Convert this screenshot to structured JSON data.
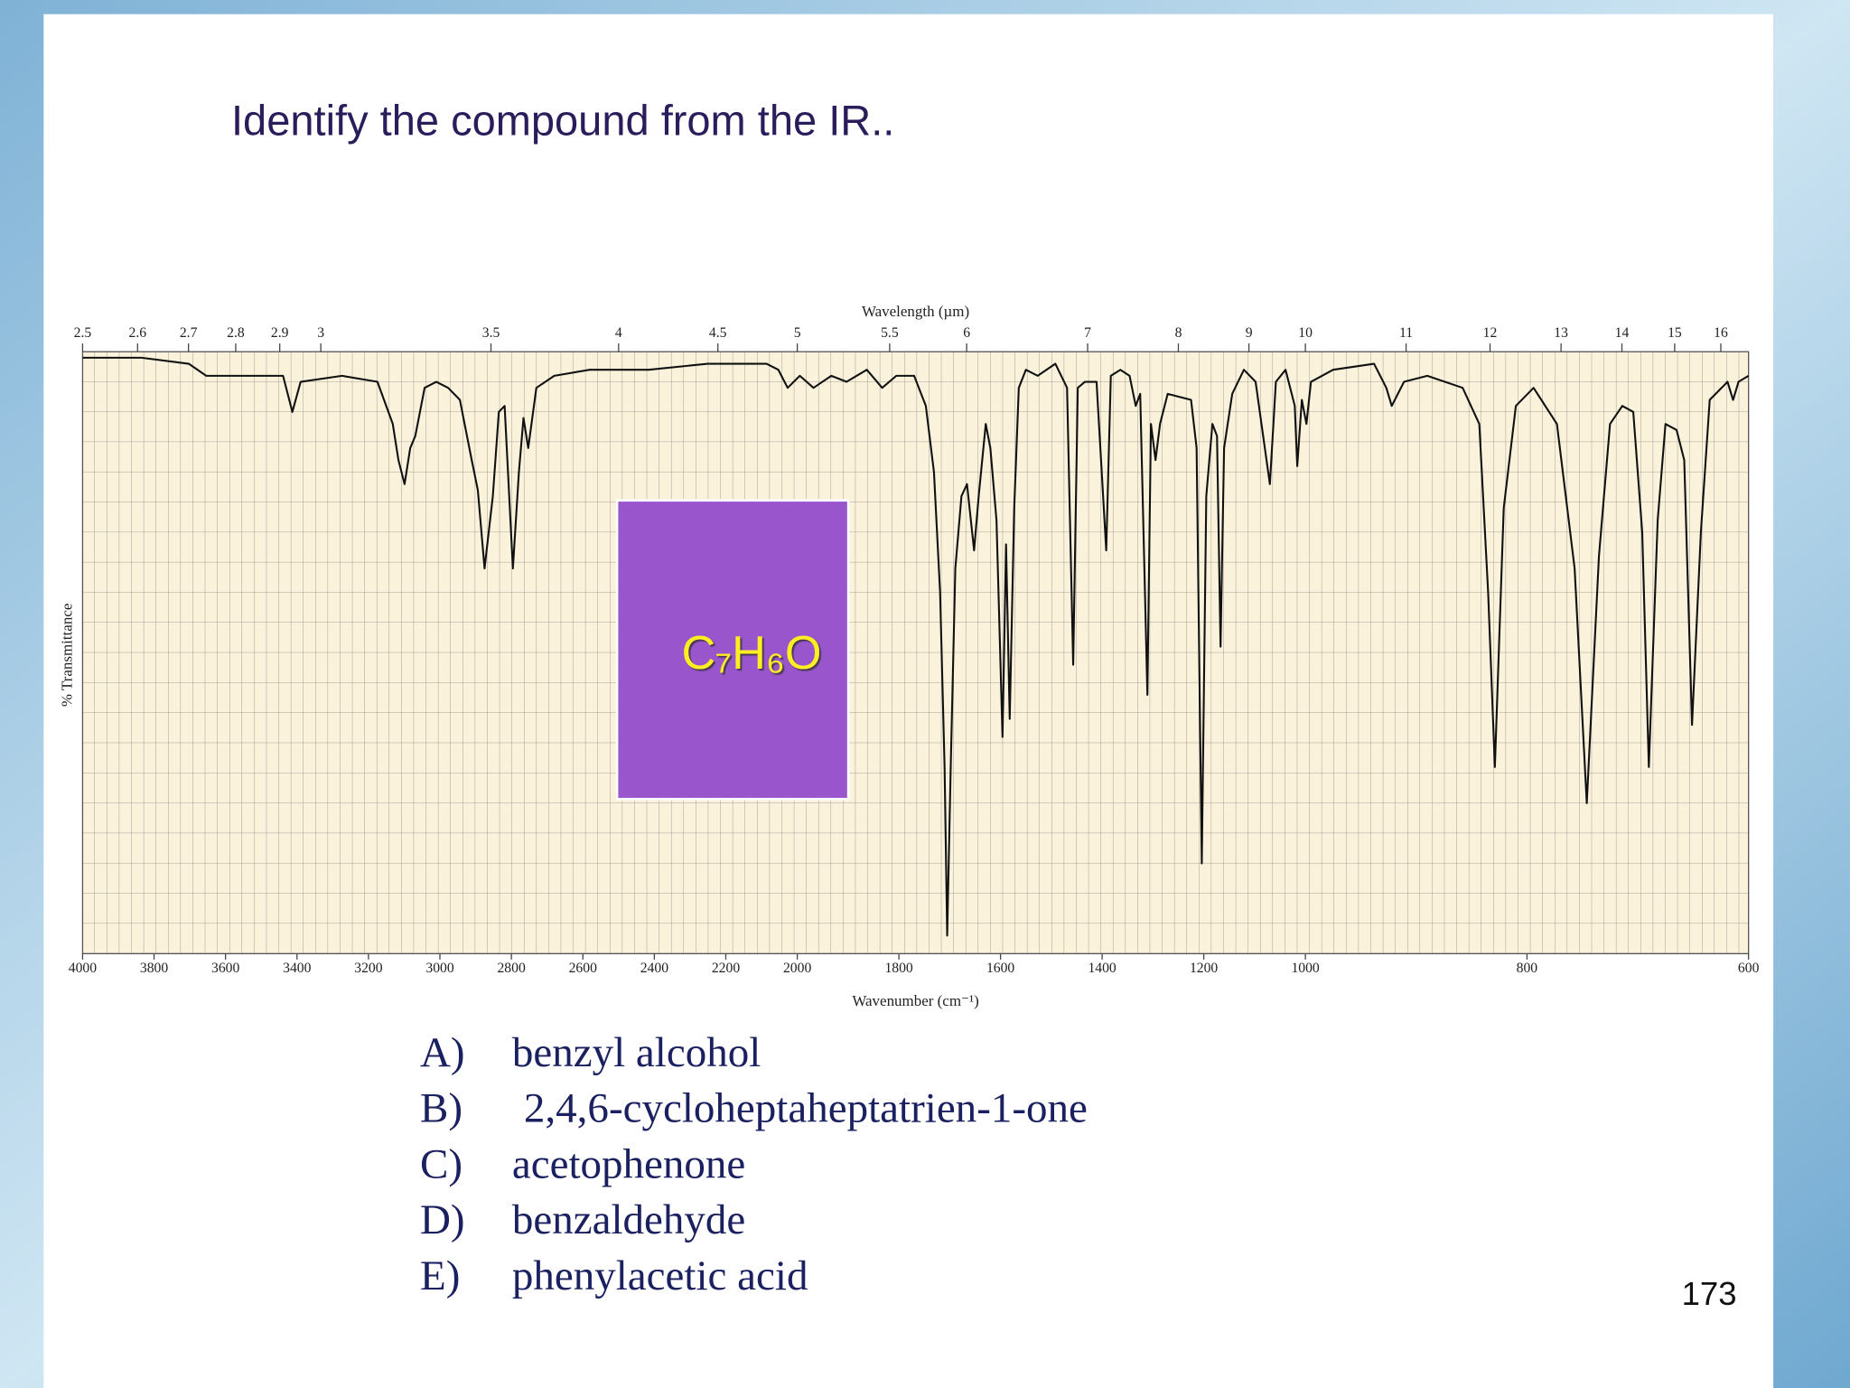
{
  "title": "Identify the compound from the IR..",
  "chart_data": {
    "type": "line",
    "x_label": "Wavenumber (cm⁻¹)",
    "x2_label": "Wavelength (µm)",
    "y_label": "% Transmittance",
    "color": "#111111",
    "xlim": [
      4000,
      600
    ],
    "x_scale_breaks": [
      2000,
      1000
    ],
    "ylim": [
      0,
      100
    ],
    "grid": true,
    "xticks": [
      4000,
      3800,
      3600,
      3400,
      3200,
      3000,
      2800,
      2600,
      2400,
      2200,
      2000,
      1800,
      1600,
      1400,
      1200,
      1000,
      800,
      600
    ],
    "x2ticks": [
      2.5,
      2.6,
      2.7,
      2.8,
      2.9,
      3,
      3.5,
      4,
      4.5,
      5,
      5.5,
      6,
      7,
      8,
      9,
      10,
      11,
      12,
      13,
      14,
      15,
      16
    ],
    "x": [
      4000,
      3835,
      3703,
      3654,
      3439,
      3413,
      3390,
      3274,
      3175,
      3132,
      3116,
      3099,
      3083,
      3069,
      3043,
      3010,
      2977,
      2944,
      2911,
      2894,
      2875,
      2852,
      2835,
      2819,
      2796,
      2779,
      2766,
      2753,
      2730,
      2680,
      2581,
      2416,
      2251,
      2086,
      2053,
      2027,
      1995,
      1968,
      1933,
      1903,
      1863,
      1833,
      1805,
      1770,
      1747,
      1731,
      1719,
      1710,
      1705,
      1698,
      1689,
      1677,
      1666,
      1652,
      1643,
      1629,
      1620,
      1608,
      1596,
      1589,
      1582,
      1573,
      1564,
      1550,
      1527,
      1492,
      1469,
      1457,
      1448,
      1434,
      1411,
      1392,
      1383,
      1364,
      1346,
      1334,
      1325,
      1311,
      1304,
      1295,
      1286,
      1271,
      1225,
      1214,
      1204,
      1195,
      1183,
      1174,
      1167,
      1160,
      1144,
      1121,
      1098,
      1070,
      1058,
      1039,
      1021,
      1016,
      1007,
      999,
      995,
      975,
      938,
      927,
      922,
      911,
      890,
      858,
      843,
      835,
      829,
      821,
      810,
      794,
      773,
      757,
      746,
      735,
      725,
      714,
      704,
      696,
      690,
      682,
      675,
      665,
      658,
      651,
      643,
      635,
      619,
      614,
      609,
      600
    ],
    "values": [
      99,
      99,
      98,
      96,
      96,
      90,
      95,
      96,
      95,
      88,
      82,
      78,
      84,
      86,
      94,
      95,
      94,
      92,
      82,
      77,
      64,
      76,
      90,
      91,
      64,
      80,
      89,
      84,
      94,
      96,
      97,
      97,
      98,
      98,
      97,
      94,
      96,
      94,
      96,
      95,
      97,
      94,
      96,
      96,
      91,
      80,
      60,
      31,
      3,
      31,
      64,
      76,
      78,
      67,
      76,
      88,
      84,
      72,
      36,
      68,
      39,
      74,
      94,
      97,
      96,
      98,
      94,
      48,
      94,
      95,
      95,
      67,
      96,
      97,
      96,
      91,
      93,
      43,
      88,
      82,
      88,
      93,
      92,
      84,
      15,
      76,
      88,
      86,
      51,
      84,
      93,
      97,
      95,
      78,
      95,
      97,
      91,
      81,
      92,
      88,
      95,
      97,
      98,
      94,
      91,
      95,
      96,
      94,
      88,
      60,
      31,
      74,
      91,
      94,
      88,
      64,
      25,
      66,
      88,
      91,
      90,
      70,
      31,
      72,
      88,
      87,
      82,
      38,
      70,
      92,
      95,
      92,
      95,
      96
    ]
  },
  "formula": "C₇H₆O",
  "options": [
    {
      "letter": "A)",
      "text": "benzyl alcohol"
    },
    {
      "letter": "B)",
      "text": "2,4,6-cycloheptaheptatrien-1-one"
    },
    {
      "letter": "C)",
      "text": "acetophenone"
    },
    {
      "letter": "D)",
      "text": "benzaldehyde"
    },
    {
      "letter": "E)",
      "text": "phenylacetic acid"
    }
  ],
  "page_number": "173"
}
